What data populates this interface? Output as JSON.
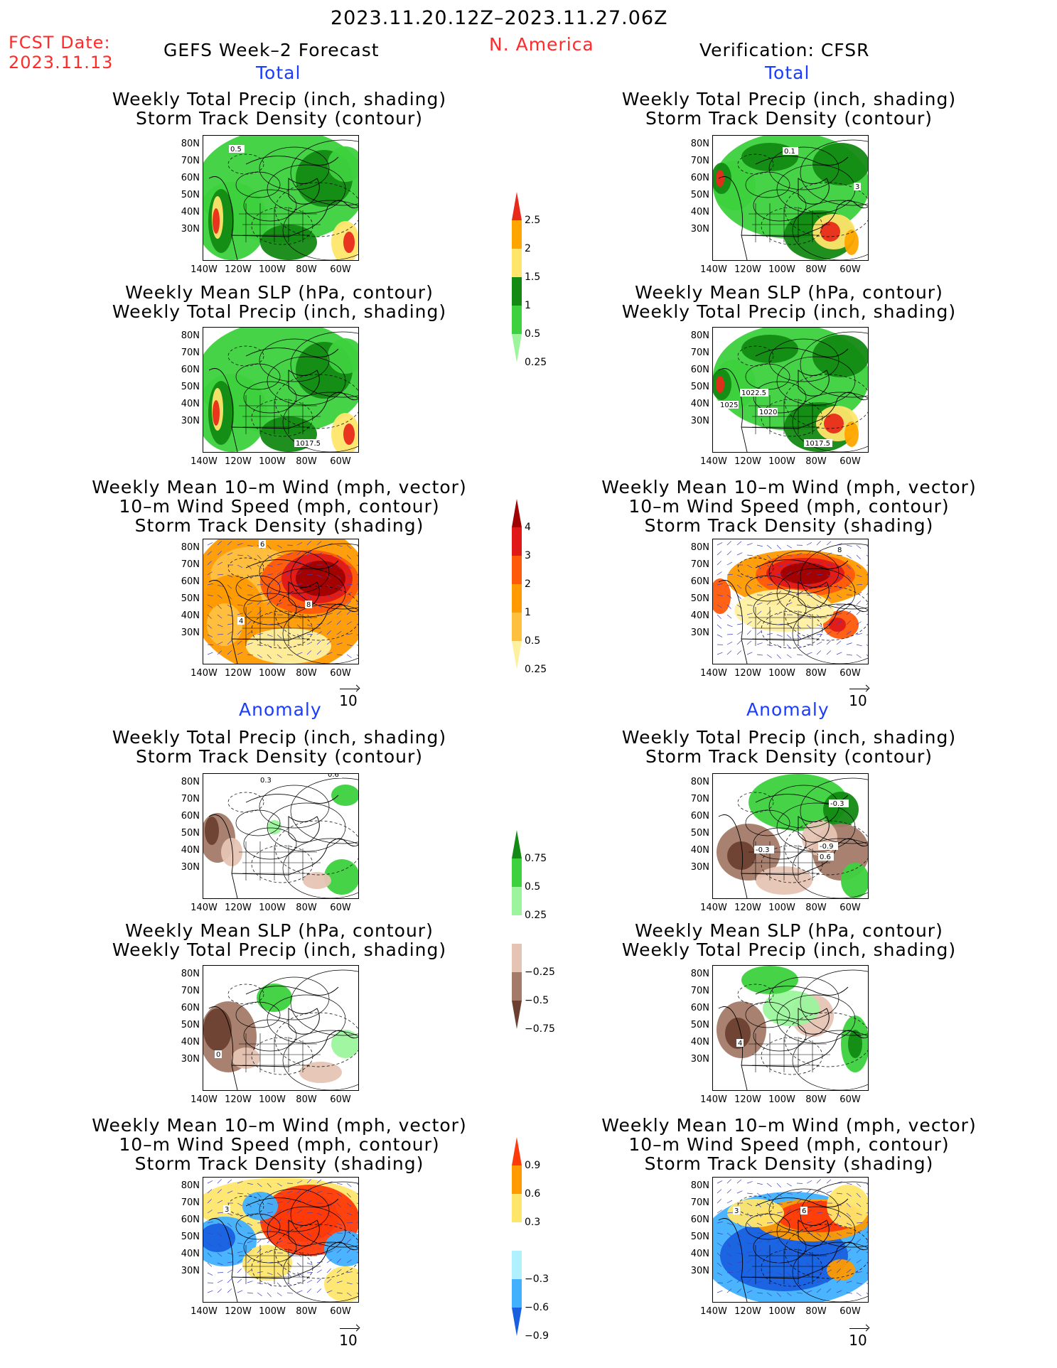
{
  "header": {
    "period": "2023.11.20.12Z–2023.11.27.06Z",
    "fcst_label": "FCST Date:",
    "fcst_date": "2023.11.13",
    "model_title": "GEFS Week–2 Forecast",
    "region": "N. America",
    "verification": "Verification: CFSR"
  },
  "sections": {
    "total": "Total",
    "anomaly": "Anomaly"
  },
  "panel_titles": {
    "precip_storm": [
      "Weekly Total Precip (inch, shading)",
      "Storm Track Density (contour)"
    ],
    "slp_precip": [
      "Weekly Mean SLP (hPa, contour)",
      "Weekly Total Precip (inch, shading)"
    ],
    "wind_storm": [
      "Weekly Mean 10–m Wind (mph, vector)",
      "10–m Wind Speed (mph, contour)",
      "Storm Track Density (shading)"
    ]
  },
  "axes": {
    "lat_labels": [
      "80N",
      "70N",
      "60N",
      "50N",
      "40N",
      "30N"
    ],
    "lon_labels": [
      "140W",
      "120W",
      "100W",
      "80W",
      "60W"
    ]
  },
  "vector_ref": "10",
  "contour_labels": {
    "fc_total_precip": [
      "0.5"
    ],
    "ver_total_precip": [
      "0.1",
      "3"
    ],
    "fc_total_slp": [
      "1017.5"
    ],
    "ver_total_slp": [
      "1022.5",
      "1025",
      "1020",
      "1017.5"
    ],
    "fc_total_wind": [
      "6",
      "8",
      "4"
    ],
    "ver_total_wind": [
      "8"
    ],
    "fc_anom_precip": [
      "0.3",
      "0.6"
    ],
    "ver_anom_precip": [
      "-0.3",
      "-0.9",
      "0.6",
      "-0.3"
    ],
    "fc_anom_slp": [
      "0"
    ],
    "ver_anom_slp": [
      "4"
    ],
    "fc_anom_wind": [
      "3"
    ],
    "ver_anom_wind": [
      "6",
      "3"
    ]
  },
  "colorbars": {
    "total_precip": {
      "ticks": [
        "2.5",
        "2",
        "1.5",
        "1",
        "0.5",
        "0.25"
      ],
      "colors": [
        "#e82a1a",
        "#ffa500",
        "#ffe66b",
        "#138a13",
        "#3dd13d",
        "#9cf59c"
      ]
    },
    "total_storm": {
      "ticks": [
        "4",
        "3",
        "2",
        "1",
        "0.5",
        "0.25"
      ],
      "colors": [
        "#a00000",
        "#e01818",
        "#ff5a0a",
        "#ff9a00",
        "#ffc040",
        "#fff0a0"
      ]
    },
    "anom_precip": {
      "ticks": [
        "0.75",
        "0.5",
        "0.25",
        "−0.25",
        "−0.5",
        "−0.75"
      ],
      "colors": [
        "#138a13",
        "#3dd13d",
        "#9cf59c",
        "#ffffff",
        "#e6c4b4",
        "#a47a68",
        "#6b4030"
      ]
    },
    "anom_storm": {
      "ticks": [
        "0.9",
        "0.6",
        "0.3",
        "−0.3",
        "−0.6",
        "−0.9"
      ],
      "colors": [
        "#ff3a0a",
        "#ff9a00",
        "#ffe66b",
        "#ffffff",
        "#b0f0ff",
        "#40b0ff",
        "#1860e0"
      ]
    }
  }
}
